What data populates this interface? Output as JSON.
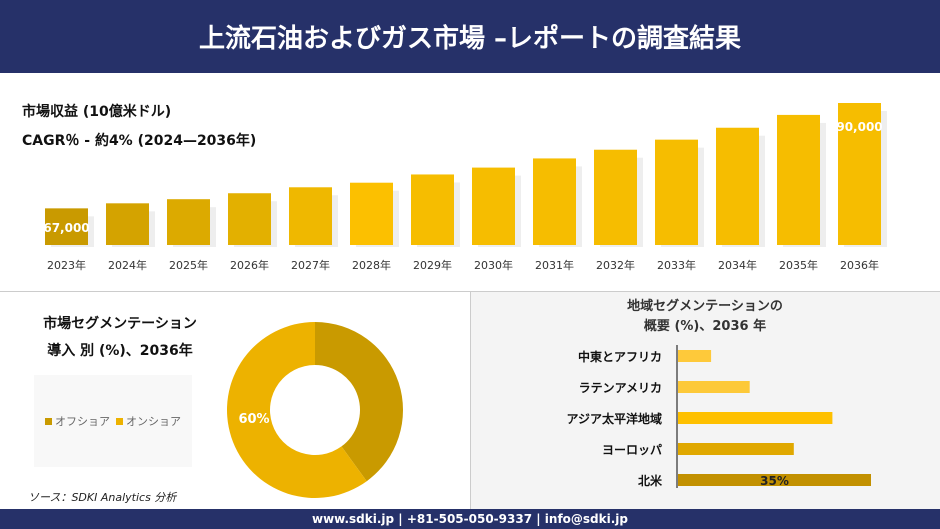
{
  "header": {
    "title": "上流石油およびガス市場 –レポートの調査結果"
  },
  "footer": {
    "contact": "www.sdki.jp | +81-505-050-9337 | info@sdki.jp"
  },
  "source": "ソース：SDKI Analytics 分析",
  "chart_data": [
    {
      "type": "bar",
      "title": "市場収益 (10億米ドル)",
      "subtitle": "CAGR％ - 約4% (2024—2036年)",
      "categories": [
        "2023年",
        "2024年",
        "2025年",
        "2026年",
        "2027年",
        "2028年",
        "2029年",
        "2030年",
        "2031年",
        "2032年",
        "2033年",
        "2034年",
        "2035年",
        "2036年"
      ],
      "values": [
        67000,
        68100,
        69000,
        70300,
        71600,
        72600,
        74400,
        75900,
        77900,
        79800,
        82000,
        84600,
        87400,
        90000
      ],
      "data_labels": {
        "0": "67,000",
        "13": "90,000"
      },
      "ylim": [
        59000,
        90000
      ],
      "grid": false,
      "colors": [
        "#c99a00",
        "#d4a300",
        "#dcaa00",
        "#e3b000",
        "#efb800",
        "#fcc000"
      ]
    },
    {
      "type": "pie",
      "title": "市場セグメンテーション 導入 別 (%)、2036年",
      "title_lines": [
        "市場セグメンテーション",
        "導入 別 (%)、2036年"
      ],
      "labels": [
        "オフショア",
        "オンショア"
      ],
      "values": [
        40,
        60
      ],
      "colors": [
        "#c99a00",
        "#edb200"
      ],
      "data_labels": [
        "",
        "60%"
      ],
      "legend": "left"
    },
    {
      "type": "bar",
      "orientation": "horizontal",
      "title_lines": [
        "地域セグメンテーションの",
        "概要 (%)、2036 年"
      ],
      "categories": [
        "中東とアフリカ",
        "ラテンアメリカ",
        "アジア太平洋地域",
        "ヨーロッパ",
        "北米"
      ],
      "values": [
        6,
        13,
        28,
        21,
        35
      ],
      "data_labels": [
        "",
        "",
        "",
        "",
        "35%"
      ],
      "colors": [
        "#fec93a",
        "#fdc939",
        "#fec000",
        "#e0a800",
        "#c29000"
      ]
    }
  ]
}
